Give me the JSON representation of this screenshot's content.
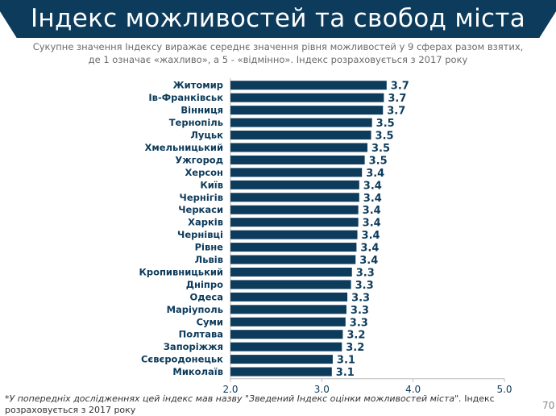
{
  "header": {
    "title": "Індекс можливостей та свобод міста"
  },
  "subtitle": {
    "line1": "Сукупне значення Індексу виражає середнє значення рівня можливостей у 9 сферах разом взятих,",
    "line2": "де 1 означає «жахливо», а 5 - «відмінно». Індекс розраховується з 2017 року"
  },
  "chart_data": {
    "type": "bar",
    "orientation": "horizontal",
    "categories": [
      "Житомир",
      "Ів-Франківськ",
      "Вінниця",
      "Тернопіль",
      "Луцьк",
      "Хмельницький",
      "Ужгород",
      "Херсон",
      "Київ",
      "Чернігів",
      "Черкаси",
      "Харків",
      "Чернівці",
      "Рівне",
      "Львів",
      "Кропивницький",
      "Дніпро",
      "Одеса",
      "Маріуполь",
      "Суми",
      "Полтава",
      "Запоріжжя",
      "Сєвєродонецьк",
      "Миколаїв"
    ],
    "values": [
      3.71,
      3.68,
      3.67,
      3.55,
      3.54,
      3.5,
      3.47,
      3.44,
      3.41,
      3.41,
      3.4,
      3.4,
      3.39,
      3.38,
      3.37,
      3.33,
      3.32,
      3.28,
      3.27,
      3.26,
      3.23,
      3.22,
      3.12,
      3.11
    ],
    "data_labels": [
      "3.7",
      "3.7",
      "3.7",
      "3.5",
      "3.5",
      "3.5",
      "3.5",
      "3.4",
      "3.4",
      "3.4",
      "3.4",
      "3.4",
      "3.4",
      "3.4",
      "3.4",
      "3.3",
      "3.3",
      "3.3",
      "3.3",
      "3.3",
      "3.2",
      "3.2",
      "3.1",
      "3.1"
    ],
    "xlim": [
      2.0,
      5.0
    ],
    "xticks": [
      "2.0",
      "3.0",
      "4.0",
      "5.0"
    ],
    "grid": false,
    "bar_color": "#0d3b5b"
  },
  "footnote": {
    "italic": "*У попередніх дослідженнях цей індекс мав назву \"Зведений Індекс оцінки можливостей міста\".",
    "normal": " Індекс розраховується з 2017 року"
  },
  "page_number": "70"
}
